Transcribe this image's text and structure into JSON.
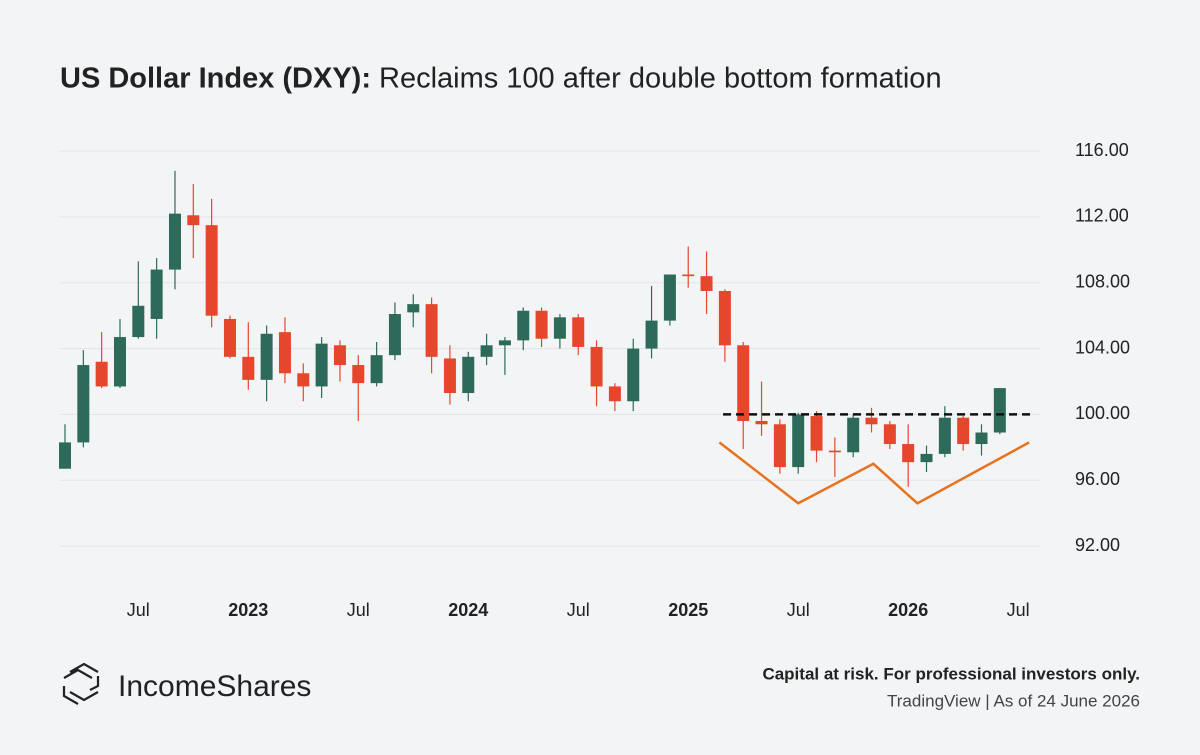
{
  "chart_data": {
    "type": "candlestick",
    "title_bold": "US Dollar Index (DXY):",
    "title": "Reclaims 100 after double bottom formation",
    "categories": [
      null,
      null,
      null,
      null,
      "Jul",
      null,
      null,
      null,
      null,
      null,
      "2023",
      null,
      null,
      null,
      null,
      null,
      "Jul",
      null,
      null,
      null,
      null,
      null,
      "2024",
      null,
      null,
      null,
      null,
      null,
      "Jul",
      null,
      null,
      null,
      null,
      null,
      "2025",
      null,
      null,
      null,
      null,
      null,
      "Jul",
      null,
      null,
      null,
      null,
      null,
      "2026",
      null,
      null,
      null,
      null,
      null,
      "Jul"
    ],
    "open": [
      96.7,
      98.3,
      103.2,
      101.7,
      104.7,
      105.8,
      108.8,
      112.1,
      111.5,
      105.8,
      103.5,
      102.1,
      105.0,
      102.5,
      101.7,
      104.2,
      103.0,
      101.9,
      103.6,
      106.2,
      106.7,
      103.4,
      101.3,
      103.5,
      104.2,
      104.5,
      106.3,
      104.6,
      105.9,
      104.1,
      101.7,
      100.8,
      104.0,
      105.7,
      108.5,
      108.4,
      107.5,
      104.2,
      99.6,
      99.4,
      96.8,
      99.9,
      97.8,
      97.7,
      99.8,
      99.4,
      98.2,
      97.1,
      97.6,
      99.8,
      98.2,
      98.9,
      null
    ],
    "high": [
      99.4,
      103.9,
      105.0,
      105.8,
      109.3,
      109.5,
      114.8,
      114.0,
      113.1,
      106.0,
      105.6,
      105.4,
      105.9,
      103.1,
      104.7,
      104.5,
      103.6,
      104.4,
      106.8,
      107.3,
      107.1,
      104.2,
      103.8,
      104.9,
      104.7,
      106.5,
      106.5,
      106.1,
      106.1,
      104.5,
      101.9,
      104.6,
      107.8,
      108.5,
      110.2,
      109.9,
      107.6,
      104.4,
      102.0,
      99.7,
      100.1,
      100.2,
      98.6,
      100.0,
      100.4,
      99.6,
      99.4,
      98.1,
      100.5,
      99.9,
      99.4,
      101.6,
      null
    ],
    "low": [
      96.7,
      98.0,
      101.6,
      101.6,
      104.6,
      104.6,
      107.6,
      109.5,
      105.3,
      103.4,
      101.5,
      100.8,
      101.9,
      100.8,
      101.0,
      102.0,
      99.6,
      101.7,
      103.3,
      105.3,
      102.5,
      100.6,
      100.8,
      103.0,
      102.4,
      103.9,
      104.1,
      104.0,
      103.6,
      100.5,
      100.2,
      100.2,
      103.4,
      105.4,
      107.7,
      106.1,
      103.2,
      97.9,
      98.7,
      96.4,
      96.4,
      97.1,
      96.2,
      97.4,
      98.9,
      97.9,
      95.6,
      96.5,
      97.4,
      97.8,
      97.5,
      98.8,
      null
    ],
    "close": [
      98.3,
      103.0,
      101.7,
      104.7,
      106.6,
      108.8,
      112.2,
      111.5,
      106.0,
      103.5,
      102.1,
      104.9,
      102.5,
      101.7,
      104.3,
      103.0,
      101.9,
      103.6,
      106.1,
      106.7,
      103.5,
      101.3,
      103.5,
      104.2,
      104.5,
      106.3,
      104.6,
      105.9,
      104.1,
      101.7,
      100.8,
      104.0,
      105.7,
      108.5,
      108.4,
      107.5,
      104.2,
      99.6,
      99.4,
      96.8,
      100.0,
      97.8,
      97.7,
      99.8,
      99.4,
      98.2,
      97.1,
      97.6,
      99.8,
      98.2,
      98.9,
      101.6,
      null
    ],
    "up_color": "#2d6a5a",
    "down_color": "#e5472c",
    "ylim": [
      90,
      117.5
    ],
    "yticks": [
      {
        "value": 92,
        "label": "92.00"
      },
      {
        "value": 96,
        "label": "96.00"
      },
      {
        "value": 100,
        "label": "100.00"
      },
      {
        "value": 104,
        "label": "104.00"
      },
      {
        "value": 108,
        "label": "108.00"
      },
      {
        "value": 112,
        "label": "112.00"
      },
      {
        "value": 116,
        "label": "116.00"
      }
    ],
    "grid": true,
    "level_line": {
      "value": 100,
      "x": [
        35.9,
        52.9
      ],
      "color": "#111111"
    },
    "pattern_line": {
      "x": [
        35.7,
        40,
        44.1,
        46.5,
        52.6
      ],
      "y": [
        98.3,
        94.6,
        97.0,
        94.6,
        98.3
      ],
      "color": "#e8731e"
    }
  },
  "footer": {
    "brand": "IncomeShares",
    "disclaimer": "Capital at risk. For professional investors only.",
    "source": "TradingView | As of 24 June 2026"
  }
}
